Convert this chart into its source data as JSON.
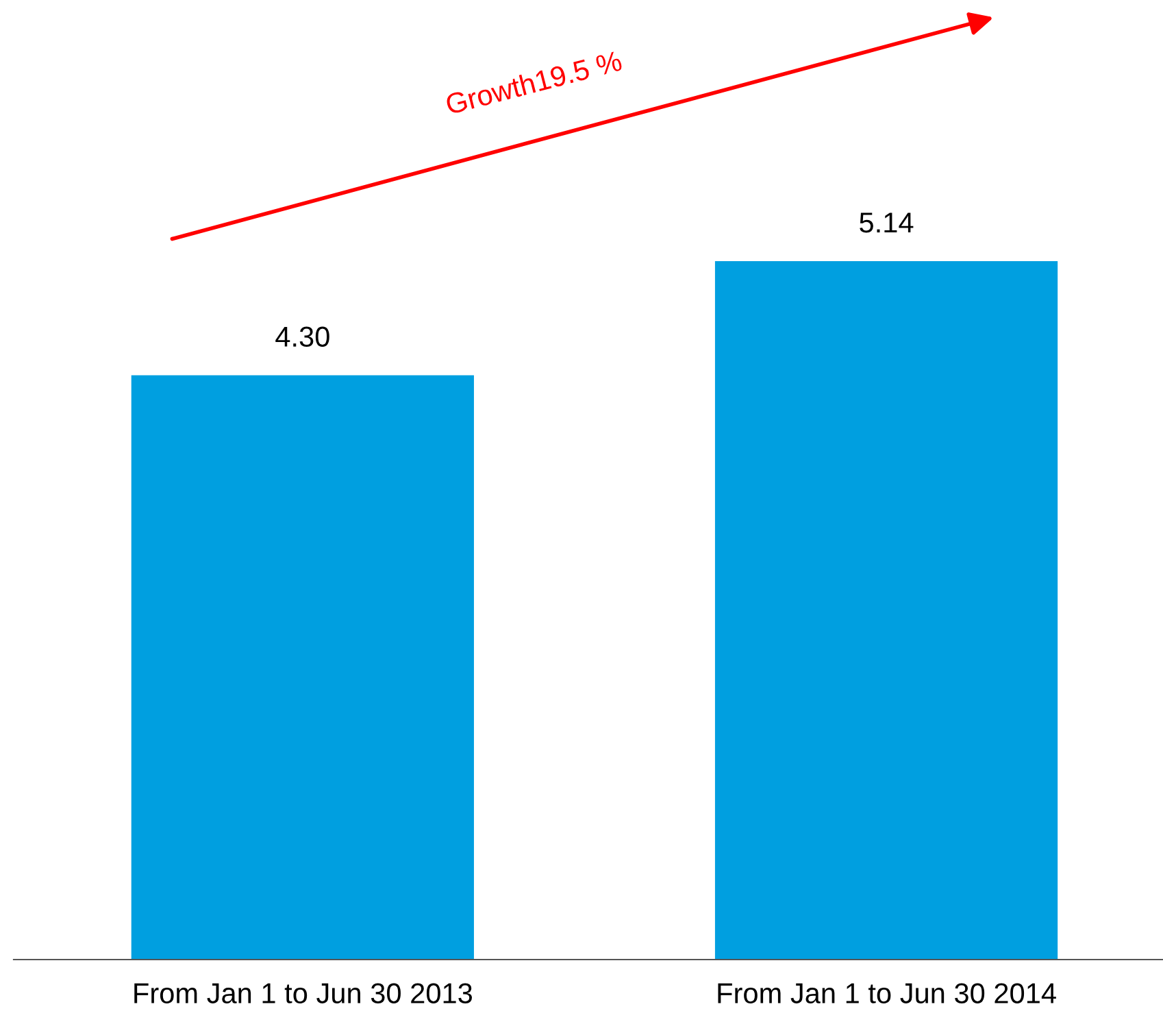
{
  "chart_data": {
    "type": "bar",
    "categories": [
      "From Jan 1 to Jun 30 2013",
      "From Jan 1 to Jun 30 2014"
    ],
    "values": [
      4.3,
      5.14
    ],
    "value_labels": [
      "4.30",
      "5.14"
    ],
    "color": "#009fe0",
    "annotations": [
      "Growth19.5 %"
    ],
    "grid": false,
    "legend": false
  }
}
